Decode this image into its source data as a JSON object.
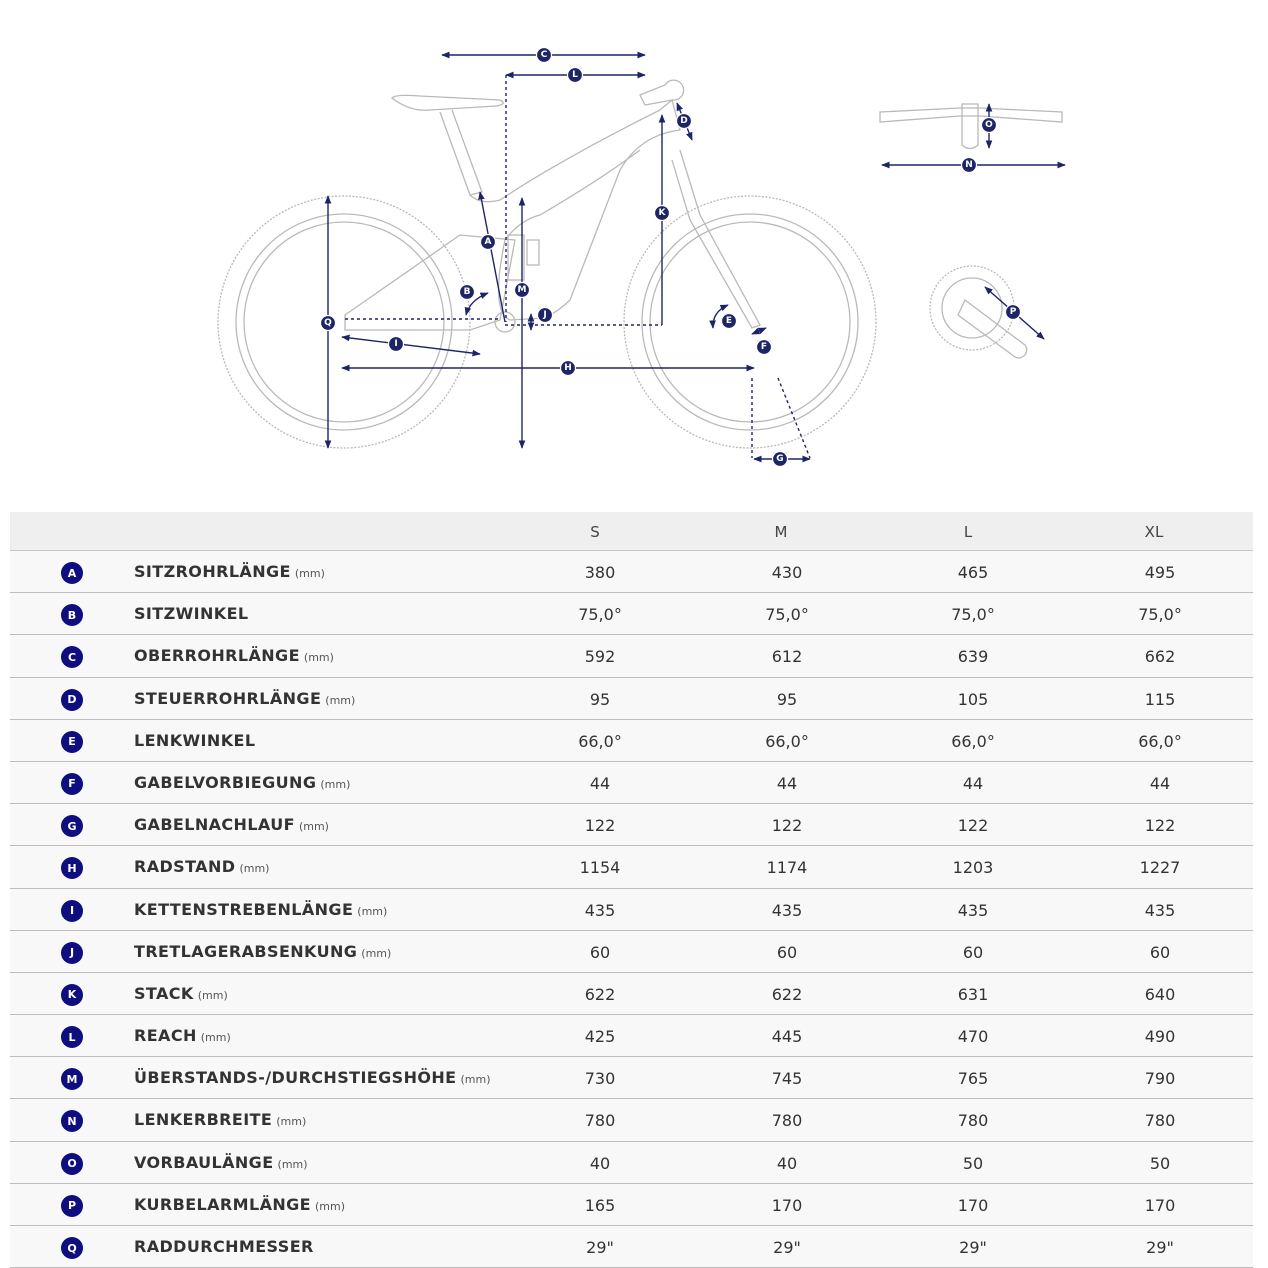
{
  "colors": {
    "badge": "#0e0e7e",
    "dimension_lines": "#1e2566",
    "bike_outline": "#b9b9b9",
    "header_bg": "#efefef"
  },
  "table": {
    "columns": [
      "S",
      "M",
      "L",
      "XL"
    ],
    "rows": [
      {
        "letter": "A",
        "label": "SITZROHRLÄNGE",
        "unit": "(mm)",
        "values": [
          "380",
          "430",
          "465",
          "495"
        ]
      },
      {
        "letter": "B",
        "label": "SITZWINKEL",
        "unit": "",
        "values": [
          "75,0°",
          "75,0°",
          "75,0°",
          "75,0°"
        ]
      },
      {
        "letter": "C",
        "label": "OBERROHRLÄNGE",
        "unit": "(mm)",
        "values": [
          "592",
          "612",
          "639",
          "662"
        ]
      },
      {
        "letter": "D",
        "label": "STEUERROHRLÄNGE",
        "unit": "(mm)",
        "values": [
          "95",
          "95",
          "105",
          "115"
        ]
      },
      {
        "letter": "E",
        "label": "LENKWINKEL",
        "unit": "",
        "values": [
          "66,0°",
          "66,0°",
          "66,0°",
          "66,0°"
        ]
      },
      {
        "letter": "F",
        "label": "GABELVORBIEGUNG",
        "unit": "(mm)",
        "values": [
          "44",
          "44",
          "44",
          "44"
        ]
      },
      {
        "letter": "G",
        "label": "GABELNACHLAUF",
        "unit": "(mm)",
        "values": [
          "122",
          "122",
          "122",
          "122"
        ]
      },
      {
        "letter": "H",
        "label": "RADSTAND",
        "unit": "(mm)",
        "values": [
          "1154",
          "1174",
          "1203",
          "1227"
        ]
      },
      {
        "letter": "I",
        "label": "KETTENSTREBENLÄNGE",
        "unit": "(mm)",
        "values": [
          "435",
          "435",
          "435",
          "435"
        ]
      },
      {
        "letter": "J",
        "label": "TRETLAGERABSENKUNG",
        "unit": "(mm)",
        "values": [
          "60",
          "60",
          "60",
          "60"
        ]
      },
      {
        "letter": "K",
        "label": "STACK",
        "unit": "(mm)",
        "values": [
          "622",
          "622",
          "631",
          "640"
        ]
      },
      {
        "letter": "L",
        "label": "REACH",
        "unit": "(mm)",
        "values": [
          "425",
          "445",
          "470",
          "490"
        ]
      },
      {
        "letter": "M",
        "label": "ÜBERSTANDS-/DURCHSTIEGSHÖHE",
        "unit": "(mm)",
        "values": [
          "730",
          "745",
          "765",
          "790"
        ]
      },
      {
        "letter": "N",
        "label": "LENKERBREITE",
        "unit": "(mm)",
        "values": [
          "780",
          "780",
          "780",
          "780"
        ]
      },
      {
        "letter": "O",
        "label": "VORBAULÄNGE",
        "unit": "(mm)",
        "values": [
          "40",
          "40",
          "50",
          "50"
        ]
      },
      {
        "letter": "P",
        "label": "KURBELARMLÄNGE",
        "unit": "(mm)",
        "values": [
          "165",
          "170",
          "170",
          "170"
        ]
      },
      {
        "letter": "Q",
        "label": "RADDURCHMESSER",
        "unit": "",
        "values": [
          "29\"",
          "29\"",
          "29\"",
          "29\""
        ]
      }
    ]
  }
}
